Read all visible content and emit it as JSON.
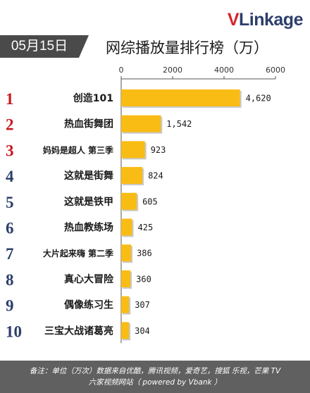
{
  "logo": {
    "v": "V",
    "rest": "Linkage"
  },
  "date": "05月15日",
  "title": "网综播放量排行榜（万）",
  "chart_data": {
    "type": "bar",
    "orientation": "horizontal",
    "ranks": [
      "1",
      "2",
      "3",
      "4",
      "5",
      "6",
      "7",
      "8",
      "9",
      "10"
    ],
    "categories": [
      "创造101",
      "热血街舞团",
      "妈妈是超人 第三季",
      "这就是街舞",
      "这就是铁甲",
      "热血教练场",
      "大片起来嗨 第二季",
      "真心大冒险",
      "偶像练习生",
      "三宝大战诸葛亮"
    ],
    "values": [
      4620,
      1542,
      923,
      824,
      605,
      425,
      386,
      360,
      307,
      304
    ],
    "value_labels": [
      "4,620",
      "1,542",
      "923",
      "824",
      "605",
      "425",
      "386",
      "360",
      "307",
      "304"
    ],
    "xlim": [
      0,
      6000
    ],
    "xticks": [
      "0",
      "2000",
      "4000",
      "6000"
    ],
    "grid": false,
    "bar_color": "#f9bc15",
    "rank_colors": [
      "#c8181e",
      "#c8181e",
      "#c8181e",
      "#2c3e6b",
      "#2c3e6b",
      "#2c3e6b",
      "#2c3e6b",
      "#2c3e6b",
      "#2c3e6b",
      "#2c3e6b"
    ]
  },
  "footer": {
    "line1": "备注：单位（万次）数据来自优酷，腾讯视频，爱奇艺，搜狐 乐视，芒果 TV",
    "line2": "六家视频网站（ powered by Vbank ）"
  }
}
